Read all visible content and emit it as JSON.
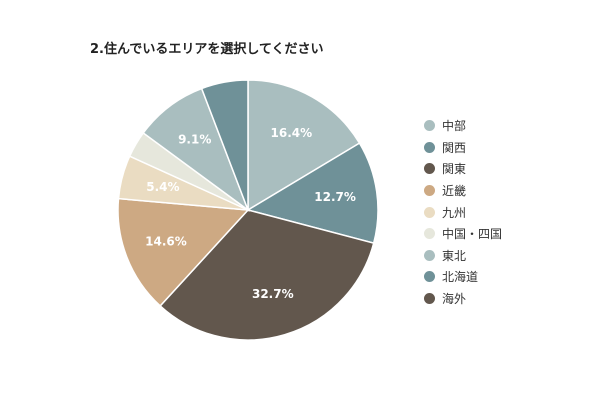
{
  "chart_data": {
    "type": "pie",
    "title": "2.住んでいるエリアを選択してください",
    "legend_position": "right",
    "categories": [
      "中部",
      "関西",
      "関東",
      "近畿",
      "九州",
      "中国・四国",
      "東北",
      "北海道",
      "海外"
    ],
    "values": [
      16.4,
      12.7,
      32.7,
      14.6,
      5.4,
      3.3,
      9.1,
      5.8,
      0
    ],
    "data_labels": [
      "16.4%",
      "12.7%",
      "32.7%",
      "14.6%",
      "5.4%",
      "",
      "9.1%",
      "",
      ""
    ],
    "colors": [
      "#a9bebf",
      "#6f9198",
      "#62574d",
      "#cda983",
      "#eadcc2",
      "#e6e7dc",
      "#a9bebf",
      "#6f9198",
      "#62574d"
    ],
    "label_colors": [
      "#ffffff",
      "#ffffff",
      "#ffffff",
      "#ffffff",
      "#ffffff",
      "#ffffff",
      "#ffffff",
      "#ffffff",
      "#ffffff"
    ],
    "start": "12 o'clock",
    "direction": "clockwise"
  }
}
